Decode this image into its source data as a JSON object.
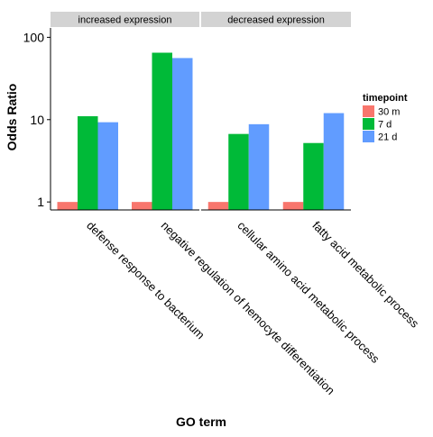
{
  "chart_data": {
    "type": "bar",
    "title": "",
    "xlabel": "GO term",
    "ylabel": "Odds Ratio",
    "y_scale": "log10",
    "ylim": [
      0.8,
      130
    ],
    "yticks": [
      1,
      10,
      100
    ],
    "ytick_labels": [
      "1",
      "10",
      "100"
    ],
    "legend_title": "timepoint",
    "legend_position": "right",
    "grid": false,
    "series": [
      {
        "name": "30 m",
        "color": "#F8766D"
      },
      {
        "name": "7 d",
        "color": "#00BA38"
      },
      {
        "name": "21 d",
        "color": "#619CFF"
      }
    ],
    "panels": [
      {
        "strip": "increased expression",
        "categories": [
          "defense response to bacterium",
          "negative regulation of hemocyte differentiation"
        ],
        "values": [
          [
            1.0,
            11.0,
            9.3
          ],
          [
            1.0,
            65.0,
            56.0
          ]
        ]
      },
      {
        "strip": "decreased expression",
        "categories": [
          "cellular amino acid metabolic process",
          "fatty acid metabolic process"
        ],
        "values": [
          [
            1.0,
            6.7,
            8.8
          ],
          [
            1.0,
            5.2,
            12.0
          ]
        ]
      }
    ]
  }
}
